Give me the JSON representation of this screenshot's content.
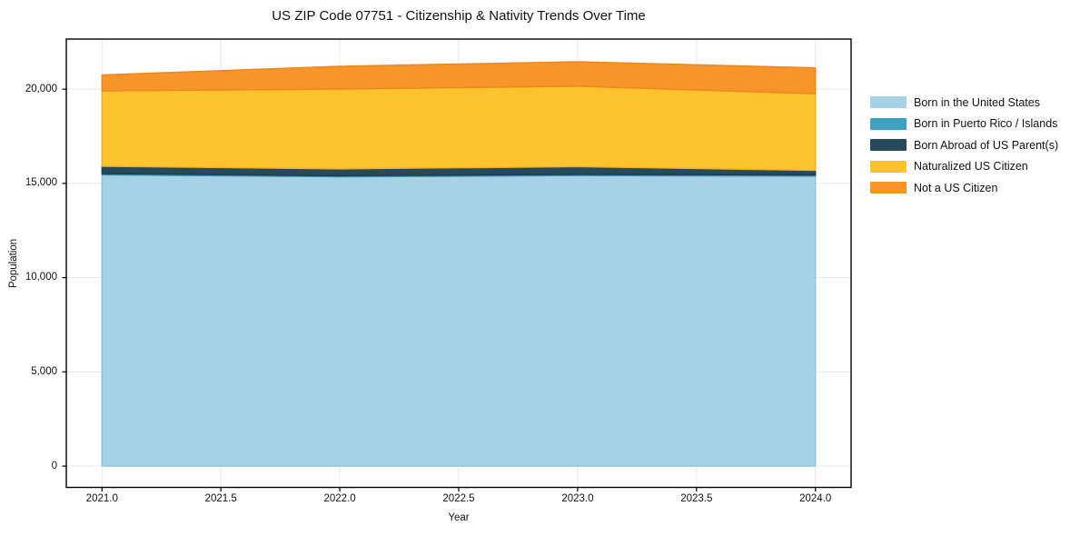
{
  "chart_data": {
    "type": "area",
    "stacked": true,
    "title": "US ZIP Code 07751 - Citizenship & Nativity Trends Over Time",
    "xlabel": "Year",
    "ylabel": "Population",
    "x": [
      2021,
      2022,
      2023,
      2024
    ],
    "series": [
      {
        "name": "Born in the United States",
        "values": [
          15460,
          15350,
          15420,
          15390
        ],
        "color": "#a6d2e6",
        "edge": "#8fc3da"
      },
      {
        "name": "Born in Puerto Rico / Islands",
        "values": [
          60,
          60,
          60,
          60
        ],
        "color": "#3fa2c2",
        "edge": "#368eab"
      },
      {
        "name": "Born Abroad of US Parent(s)",
        "values": [
          390,
          360,
          410,
          240
        ],
        "color": "#26495c",
        "edge": "#1e3b4b"
      },
      {
        "name": "Naturalized US Citizen",
        "values": [
          4000,
          4240,
          4270,
          4070
        ],
        "color": "#fcc32e",
        "edge": "#f2b11c"
      },
      {
        "name": "Not a US Citizen",
        "values": [
          845,
          1205,
          1300,
          1370
        ],
        "color": "#f7952a",
        "edge": "#ec861d"
      }
    ],
    "totals": [
      20755,
      21215,
      21460,
      21130
    ],
    "xlim": [
      2020.85,
      2024.15
    ],
    "ylim": [
      -1130,
      22660
    ],
    "xticks": {
      "values": [
        2021.0,
        2021.5,
        2022.0,
        2022.5,
        2023.0,
        2023.5,
        2024.0
      ],
      "labels": [
        "2021.0",
        "2021.5",
        "2022.0",
        "2022.5",
        "2023.0",
        "2023.5",
        "2024.0"
      ]
    },
    "yticks": {
      "values": [
        0,
        5000,
        10000,
        15000,
        20000
      ],
      "labels": [
        "0",
        "5,000",
        "10,000",
        "15,000",
        "20,000"
      ]
    },
    "grid": true,
    "grid_color": "#e8e8e8",
    "frame_color": "#000000",
    "background_color": "#ffffff",
    "legend_position": "right-outside"
  }
}
